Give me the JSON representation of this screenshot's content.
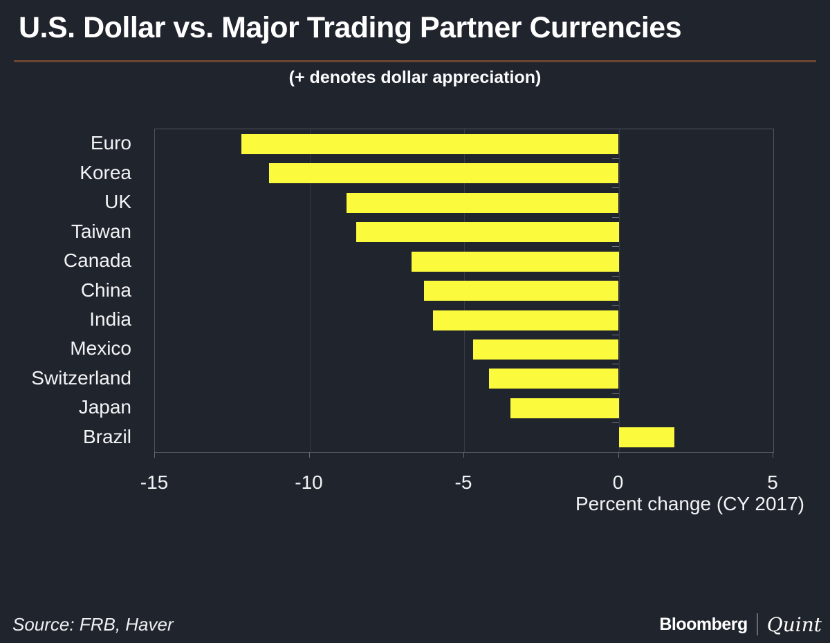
{
  "header": {
    "title": "U.S. Dollar vs. Major Trading Partner Currencies",
    "subtitle": "(+ denotes dollar appreciation)"
  },
  "chart_data": {
    "type": "bar",
    "orientation": "horizontal",
    "title": "U.S. Dollar vs. Major Trading Partner Currencies",
    "subtitle": "(+ denotes dollar appreciation)",
    "categories": [
      "Euro",
      "Korea",
      "UK",
      "Taiwan",
      "Canada",
      "China",
      "India",
      "Mexico",
      "Switzerland",
      "Japan",
      "Brazil"
    ],
    "values": [
      -12.2,
      -11.3,
      -8.8,
      -8.5,
      -6.7,
      -6.3,
      -6.0,
      -4.7,
      -4.2,
      -3.5,
      1.8
    ],
    "xlabel": "Percent change (CY 2017)",
    "xlim": [
      -15,
      5
    ],
    "xticks": [
      -15,
      -10,
      -5,
      0,
      5
    ],
    "grid": true,
    "legend": "none",
    "bar_color": "#fcfa3d"
  },
  "footer": {
    "source": "Source: FRB, Haver",
    "brand": {
      "bloomberg": "Bloomberg",
      "quint": "Quint"
    }
  },
  "colors": {
    "background": "#20242d",
    "bar": "#fcfa3d",
    "title_divider": "#6b4732",
    "text": "#ffffff",
    "gridline": "#373b45",
    "plot_border": "#4f535d"
  }
}
